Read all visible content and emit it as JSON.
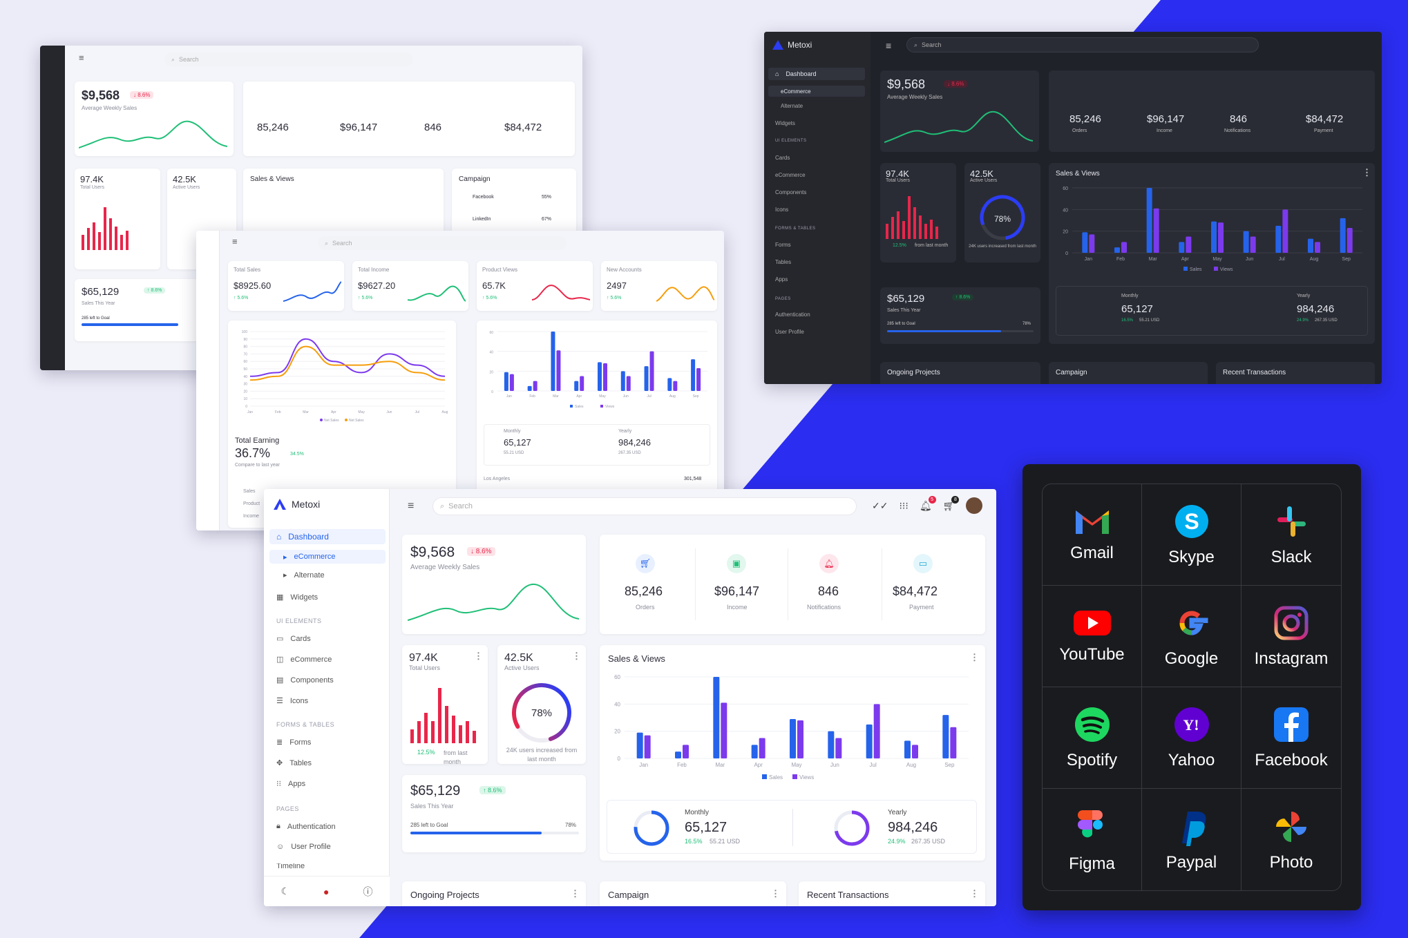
{
  "brand": "Metoxi",
  "search_placeholder": "Search",
  "colors": {
    "accent": "#2b3df5",
    "sales": "#2563eb",
    "views": "#7c3aed",
    "red": "#e8264a",
    "green": "#1fbf77",
    "bg": "#ececf8",
    "dark": "#20222a"
  },
  "stats": {
    "weekly": {
      "value": "$9,568",
      "delta": "↓ 8.6%",
      "label": "Average Weekly Sales"
    },
    "orders": {
      "value": "85,246",
      "label": "Orders",
      "icon": "cart-icon"
    },
    "income": {
      "value": "$96,147",
      "label": "Income",
      "icon": "wallet-icon"
    },
    "notifications": {
      "value": "846",
      "label": "Notifications",
      "icon": "bell-icon"
    },
    "payment": {
      "value": "$84,472",
      "label": "Payment",
      "icon": "card-icon"
    },
    "total_users": {
      "value": "97.4K",
      "label": "Total Users",
      "growth": "12.5%",
      "growth_note": "from last month"
    },
    "active_users": {
      "value": "42.5K",
      "label": "Active Users",
      "percent": "78%",
      "note": "24K users increased from last month"
    },
    "sales_year": {
      "value": "$65,129",
      "delta": "↑ 8.6%",
      "label": "Sales This Year",
      "goal": "285 left to Goal",
      "goal_pct": "78%"
    },
    "monthly": {
      "label": "Monthly",
      "value": "65,127",
      "pct": "16.5%",
      "usd": "55.21 USD"
    },
    "yearly": {
      "label": "Yearly",
      "value": "984,246",
      "pct": "24.9%",
      "usd": "267.35 USD"
    }
  },
  "cards": {
    "sales_views": "Sales & Views",
    "campaign": "Campaign",
    "ongoing": "Ongoing Projects",
    "transactions": "Recent Transactions",
    "total_earning": "Total Earning",
    "earning_value": "36.7%",
    "earning_delta": "34.5%",
    "earning_note": "Compare to last year",
    "campaign_items": [
      {
        "name": "Facebook",
        "pct": "55%"
      },
      {
        "name": "LinkedIn",
        "pct": "67%"
      }
    ],
    "mini": [
      {
        "title": "Total Sales",
        "value": "$8925.60",
        "delta": "↑ 5.6%"
      },
      {
        "title": "Total Income",
        "value": "$9627.20",
        "delta": "↑ 5.6%"
      },
      {
        "title": "Product Views",
        "value": "65.7K",
        "delta": "↑ 5.6%"
      },
      {
        "title": "New Accounts",
        "value": "2497",
        "delta": "↑ 5.6%"
      }
    ],
    "country": "Los Angeles",
    "country_value": "301,548",
    "legend_small": [
      "Sales",
      "Product",
      "Income"
    ],
    "earning_legend": [
      "Net Sales",
      "Net Sales"
    ]
  },
  "sidebar": {
    "items": [
      {
        "label": "Dashboard",
        "icon": "home-icon"
      },
      {
        "label": "eCommerce",
        "icon": "chevron-right-icon"
      },
      {
        "label": "Alternate",
        "icon": "chevron-right-icon"
      },
      {
        "label": "Widgets",
        "icon": "grid-icon"
      },
      {
        "label": "Cards",
        "icon": "card-icon"
      },
      {
        "label": "eCommerce",
        "icon": "bag-icon"
      },
      {
        "label": "Components",
        "icon": "box-icon"
      },
      {
        "label": "Icons",
        "icon": "stack-icon"
      },
      {
        "label": "Forms",
        "icon": "list-icon"
      },
      {
        "label": "Tables",
        "icon": "table-icon"
      },
      {
        "label": "Apps",
        "icon": "apps-icon"
      },
      {
        "label": "Authentication",
        "icon": "lock-icon"
      },
      {
        "label": "User Profile",
        "icon": "user-icon"
      },
      {
        "label": "Timeline",
        "icon": "timeline-icon"
      }
    ],
    "sections": [
      "UI ELEMENTS",
      "FORMS & TABLES",
      "PAGES"
    ]
  },
  "topbar_counts": {
    "notifications": "5",
    "cart": "8"
  },
  "chart_data": [
    {
      "type": "bar",
      "title": "Sales & Views",
      "categories": [
        "Jan",
        "Feb",
        "Mar",
        "Apr",
        "May",
        "Jun",
        "Jul",
        "Aug",
        "Sep"
      ],
      "series": [
        {
          "name": "Sales",
          "values": [
            19,
            5,
            60,
            10,
            29,
            20,
            25,
            13,
            32
          ]
        },
        {
          "name": "Views",
          "values": [
            17,
            10,
            41,
            15,
            28,
            15,
            40,
            10,
            23
          ]
        }
      ],
      "ylim": [
        0,
        60
      ],
      "yticks": [
        0,
        20,
        40,
        60
      ],
      "legend": "bottom"
    },
    {
      "type": "line",
      "title": "Total Earning",
      "categories": [
        "Jan",
        "Feb",
        "Mar",
        "Apr",
        "May",
        "Jun",
        "Jul",
        "Aug"
      ],
      "series": [
        {
          "name": "Net Sales",
          "values": [
            40,
            45,
            90,
            60,
            45,
            70,
            55,
            40
          ]
        },
        {
          "name": "Net Sales",
          "values": [
            35,
            40,
            80,
            55,
            55,
            60,
            45,
            35
          ]
        }
      ],
      "ylim": [
        0,
        100
      ],
      "yticks": [
        0,
        10,
        20,
        30,
        40,
        50,
        60,
        70,
        80,
        90,
        100
      ]
    }
  ],
  "apps": [
    {
      "name": "Gmail",
      "icon": "gmail-icon"
    },
    {
      "name": "Skype",
      "icon": "skype-icon"
    },
    {
      "name": "Slack",
      "icon": "slack-icon"
    },
    {
      "name": "YouTube",
      "icon": "youtube-icon"
    },
    {
      "name": "Google",
      "icon": "google-icon"
    },
    {
      "name": "Instagram",
      "icon": "instagram-icon"
    },
    {
      "name": "Spotify",
      "icon": "spotify-icon"
    },
    {
      "name": "Yahoo",
      "icon": "yahoo-icon"
    },
    {
      "name": "Facebook",
      "icon": "facebook-icon"
    },
    {
      "name": "Figma",
      "icon": "figma-icon"
    },
    {
      "name": "Paypal",
      "icon": "paypal-icon"
    },
    {
      "name": "Photo",
      "icon": "photo-icon"
    }
  ]
}
